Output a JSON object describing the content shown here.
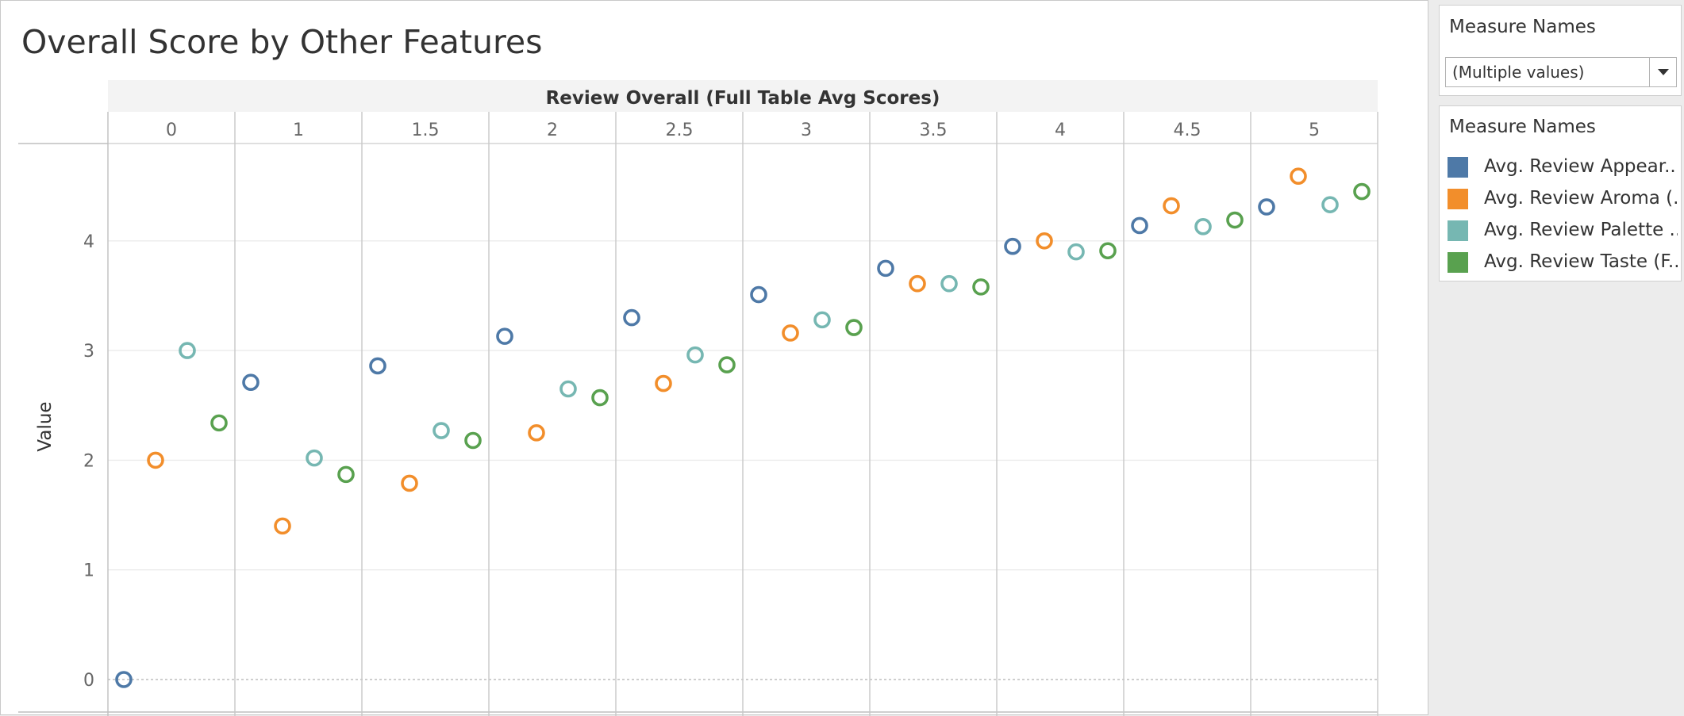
{
  "title": "Overall Score by Other Features",
  "filter": {
    "title": "Measure Names",
    "value": "(Multiple values)"
  },
  "legend": {
    "title": "Measure Names",
    "items": [
      {
        "label": "Avg. Review Appear..",
        "color": "#4e79a7"
      },
      {
        "label": "Avg. Review Aroma (..",
        "color": "#f28e2b"
      },
      {
        "label": "Avg. Review Palette ..",
        "color": "#76b7b2"
      },
      {
        "label": "Avg. Review Taste (F..",
        "color": "#59a14f"
      }
    ]
  },
  "chart_data": {
    "type": "scatter",
    "title": "Overall Score by Other Features",
    "column_header": "Review Overall (Full Table Avg Scores)",
    "categories": [
      "0",
      "1",
      "1.5",
      "2",
      "2.5",
      "3",
      "3.5",
      "4",
      "4.5",
      "5"
    ],
    "ylabel": "Value",
    "ylim": [
      0,
      4.8
    ],
    "yticks": [
      0,
      1,
      2,
      3,
      4
    ],
    "grid": true,
    "marker": "open-circle",
    "legend_position": "right",
    "series": [
      {
        "name": "Avg. Review Appear..",
        "color": "#4e79a7",
        "values": [
          0,
          2.71,
          2.86,
          3.13,
          3.3,
          3.51,
          3.75,
          3.95,
          4.14,
          4.31
        ]
      },
      {
        "name": "Avg. Review Aroma (..",
        "color": "#f28e2b",
        "values": [
          2.0,
          1.4,
          1.79,
          2.25,
          2.7,
          3.16,
          3.61,
          4.0,
          4.32,
          4.59
        ]
      },
      {
        "name": "Avg. Review Palette ..",
        "color": "#76b7b2",
        "values": [
          3.0,
          2.02,
          2.27,
          2.65,
          2.96,
          3.28,
          3.61,
          3.9,
          4.13,
          4.33
        ]
      },
      {
        "name": "Avg. Review Taste (F..",
        "color": "#59a14f",
        "values": [
          2.34,
          1.87,
          2.18,
          2.57,
          2.87,
          3.21,
          3.58,
          3.91,
          4.19,
          4.45
        ]
      }
    ]
  }
}
